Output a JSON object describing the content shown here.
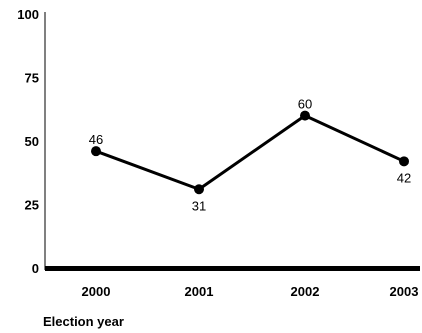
{
  "chart_data": {
    "type": "line",
    "title": "",
    "xlabel": "Election year",
    "ylabel": "",
    "categories": [
      "2000",
      "2001",
      "2002",
      "2003"
    ],
    "series": [
      {
        "values": [
          46,
          31,
          60,
          42
        ]
      }
    ],
    "data_labels": [
      "46",
      "31",
      "60",
      "42"
    ],
    "ylim": [
      0,
      100
    ],
    "yticks": [
      "0",
      "25",
      "50",
      "75",
      "100"
    ],
    "grid": false,
    "line_color": "#000000"
  }
}
